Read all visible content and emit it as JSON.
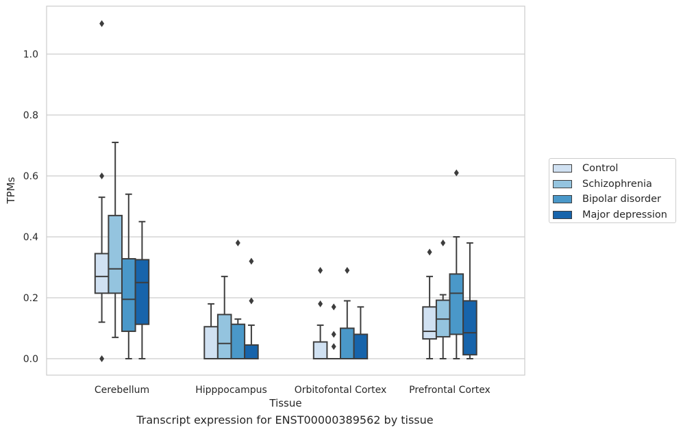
{
  "chart_data": {
    "type": "box",
    "title": "",
    "caption": "Transcript expression for ENST00000389562 by tissue",
    "xlabel": "Tissue",
    "ylabel": "TPMs",
    "ylim": [
      -0.05,
      1.16
    ],
    "yticks": [
      0.0,
      0.2,
      0.4,
      0.6,
      0.8,
      1.0
    ],
    "ytick_labels": [
      "0.0",
      "0.2",
      "0.4",
      "0.6",
      "0.8",
      "1.0"
    ],
    "grid": "horizontal",
    "legend_position": "right",
    "categories": [
      "Cerebellum",
      "Hipppocampus",
      "Orbitofontal Cortex",
      "Prefrontal Cortex"
    ],
    "series": [
      {
        "name": "Control",
        "color": "#d0e1f2",
        "boxes": [
          {
            "whislo": 0.12,
            "q1": 0.215,
            "med": 0.27,
            "q3": 0.345,
            "whishi": 0.53,
            "fliers": [
              0.0,
              0.6,
              1.1
            ]
          },
          {
            "whislo": 0.0,
            "q1": 0.0,
            "med": 0.0,
            "q3": 0.105,
            "whishi": 0.18,
            "fliers": []
          },
          {
            "whislo": 0.0,
            "q1": 0.0,
            "med": 0.0,
            "q3": 0.055,
            "whishi": 0.11,
            "fliers": [
              0.18,
              0.29
            ]
          },
          {
            "whislo": 0.0,
            "q1": 0.065,
            "med": 0.09,
            "q3": 0.17,
            "whishi": 0.27,
            "fliers": [
              0.35
            ]
          }
        ]
      },
      {
        "name": "Schizophrenia",
        "color": "#94c4df",
        "boxes": [
          {
            "whislo": 0.07,
            "q1": 0.215,
            "med": 0.295,
            "q3": 0.47,
            "whishi": 0.71,
            "fliers": []
          },
          {
            "whislo": 0.0,
            "q1": 0.0,
            "med": 0.05,
            "q3": 0.145,
            "whishi": 0.27,
            "fliers": []
          },
          {
            "whislo": 0.0,
            "q1": 0.0,
            "med": 0.0,
            "q3": 0.0,
            "whishi": 0.0,
            "fliers": [
              0.04,
              0.08,
              0.17
            ]
          },
          {
            "whislo": 0.0,
            "q1": 0.072,
            "med": 0.13,
            "q3": 0.192,
            "whishi": 0.21,
            "fliers": [
              0.38
            ]
          }
        ]
      },
      {
        "name": "Bipolar disorder",
        "color": "#4a98c9",
        "boxes": [
          {
            "whislo": 0.0,
            "q1": 0.09,
            "med": 0.195,
            "q3": 0.328,
            "whishi": 0.54,
            "fliers": []
          },
          {
            "whislo": 0.0,
            "q1": 0.0,
            "med": 0.0,
            "q3": 0.113,
            "whishi": 0.13,
            "fliers": [
              0.38
            ]
          },
          {
            "whislo": 0.0,
            "q1": 0.0,
            "med": 0.0,
            "q3": 0.1,
            "whishi": 0.19,
            "fliers": [
              0.29
            ]
          },
          {
            "whislo": 0.0,
            "q1": 0.08,
            "med": 0.215,
            "q3": 0.278,
            "whishi": 0.4,
            "fliers": [
              0.61
            ]
          }
        ]
      },
      {
        "name": "Major depression",
        "color": "#1764ab",
        "boxes": [
          {
            "whislo": 0.0,
            "q1": 0.113,
            "med": 0.25,
            "q3": 0.325,
            "whishi": 0.45,
            "fliers": []
          },
          {
            "whislo": 0.0,
            "q1": 0.0,
            "med": 0.0,
            "q3": 0.045,
            "whishi": 0.11,
            "fliers": [
              0.19,
              0.32
            ]
          },
          {
            "whislo": 0.0,
            "q1": 0.0,
            "med": 0.0,
            "q3": 0.08,
            "whishi": 0.17,
            "fliers": []
          },
          {
            "whislo": 0.0,
            "q1": 0.013,
            "med": 0.085,
            "q3": 0.19,
            "whishi": 0.38,
            "fliers": []
          }
        ]
      }
    ]
  }
}
